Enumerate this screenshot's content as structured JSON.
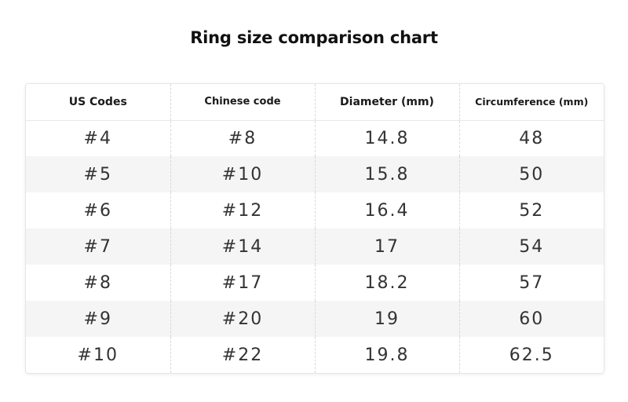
{
  "title": "Ring size comparison chart",
  "table": {
    "headers": [
      "US Codes",
      "Chinese code",
      "Diameter (mm)",
      "Circumference (mm)"
    ],
    "rows": [
      [
        "#4",
        "#8",
        "14.8",
        "48"
      ],
      [
        "#5",
        "#10",
        "15.8",
        "50"
      ],
      [
        "#6",
        "#12",
        "16.4",
        "52"
      ],
      [
        "#7",
        "#14",
        "17",
        "54"
      ],
      [
        "#8",
        "#17",
        "18.2",
        "57"
      ],
      [
        "#9",
        "#20",
        "19",
        "60"
      ],
      [
        "#10",
        "#22",
        "19.8",
        "62.5"
      ]
    ]
  }
}
